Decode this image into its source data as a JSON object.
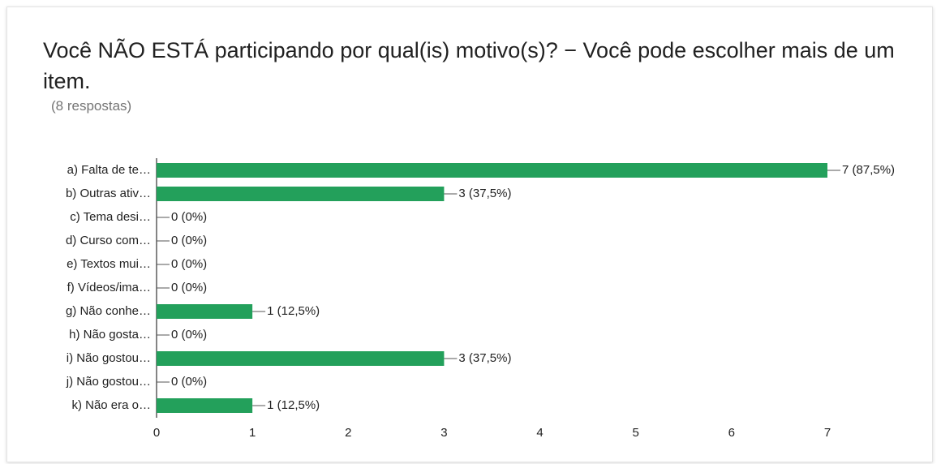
{
  "chart_data": {
    "type": "bar",
    "orientation": "horizontal",
    "title": "Você NÃO ESTÁ participando por qual(is) motivo(s)? − Você pode escolher mais de um item.",
    "subtitle": "(8 respostas)",
    "categories": [
      "a) Falta de te…",
      "b) Outras ativ…",
      "c) Tema desi…",
      "d) Curso com…",
      "e) Textos mui…",
      "f) Vídeos/ima…",
      "g) Não conhe…",
      "h) Não gosta…",
      "i) Não gostou…",
      "j) Não gostou…",
      "k) Não era o…"
    ],
    "values": [
      7,
      3,
      0,
      0,
      0,
      0,
      1,
      0,
      3,
      0,
      1
    ],
    "value_labels": [
      "7 (87,5%)",
      "3 (37,5%)",
      "0 (0%)",
      "0 (0%)",
      "0 (0%)",
      "0 (0%)",
      "1 (12,5%)",
      "0 (0%)",
      "3 (37,5%)",
      "0 (0%)",
      "1 (12,5%)"
    ],
    "color": "#23a05b",
    "xlim": [
      0,
      7
    ],
    "xticks": [
      0,
      1,
      2,
      3,
      4,
      5,
      6,
      7
    ]
  }
}
